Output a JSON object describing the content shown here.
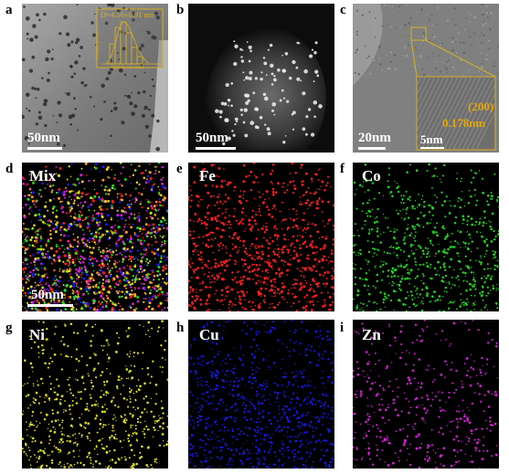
{
  "panels": [
    {
      "id": "a",
      "letter": "a",
      "scale": "50nm",
      "inset_text": "D=4.56±0.91 nm",
      "inset_xlabel": "Particle size (nm)",
      "inset_ylabel": "Frequency (%)"
    },
    {
      "id": "b",
      "letter": "b",
      "scale": "50nm"
    },
    {
      "id": "c",
      "letter": "c",
      "scale": "20nm",
      "inset_scale": "5nm",
      "plane": "(200)",
      "spacing": "0.178nm"
    },
    {
      "id": "d",
      "letter": "d",
      "label": "Mix",
      "scale": "50nm"
    },
    {
      "id": "e",
      "letter": "e",
      "label": "Fe",
      "color": "#ff2020"
    },
    {
      "id": "f",
      "letter": "f",
      "label": "Co",
      "color": "#22dd22"
    },
    {
      "id": "g",
      "letter": "g",
      "label": "Ni",
      "color": "#e6e61a"
    },
    {
      "id": "h",
      "letter": "h",
      "label": "Cu",
      "color": "#1a1aff"
    },
    {
      "id": "i",
      "letter": "i",
      "label": "Zn",
      "color": "#dd22dd"
    }
  ]
}
